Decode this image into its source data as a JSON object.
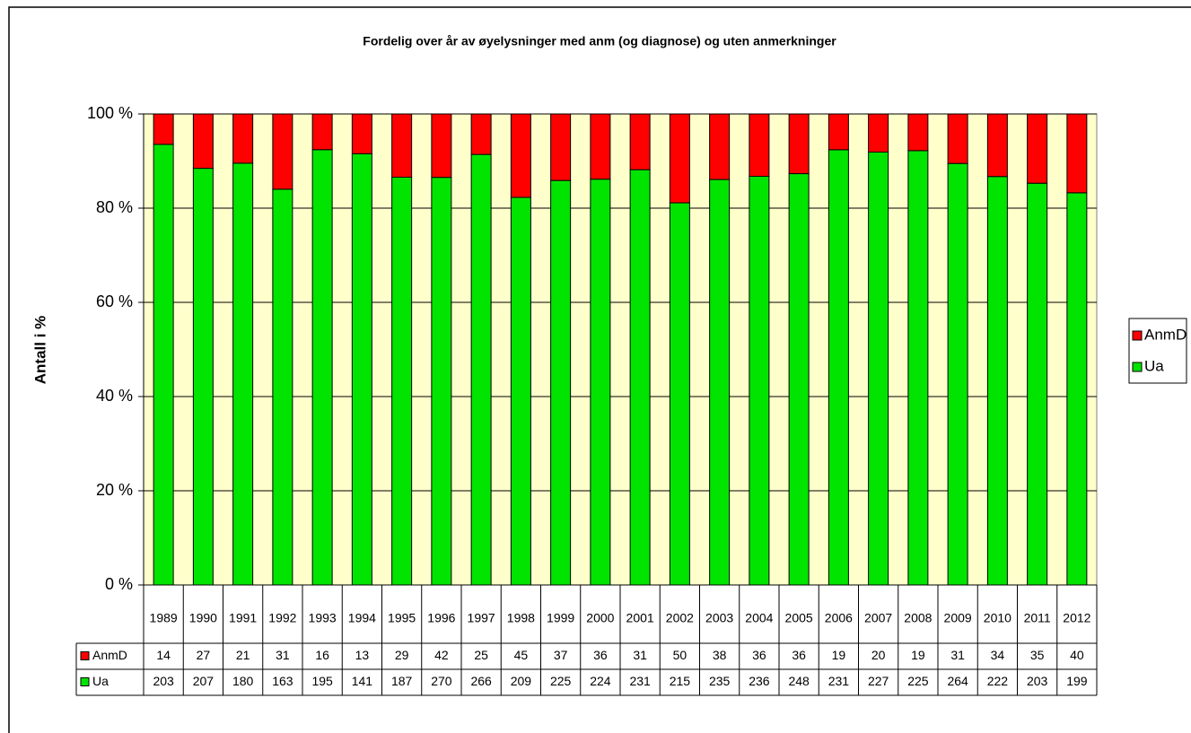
{
  "chart_data": {
    "type": "bar100",
    "title": "Fordelig over år av øyelysninger med anm (og diagnose) og uten anmerkninger",
    "y_label": "Antall i %",
    "categories": [
      "1989",
      "1990",
      "1991",
      "1992",
      "1993",
      "1994",
      "1995",
      "1996",
      "1997",
      "1998",
      "1999",
      "2000",
      "2001",
      "2002",
      "2003",
      "2004",
      "2005",
      "2006",
      "2007",
      "2008",
      "2009",
      "2010",
      "2011",
      "2012"
    ],
    "series": [
      {
        "name": "AnmD",
        "color": "#ff0000",
        "values": [
          14,
          27,
          21,
          31,
          16,
          13,
          29,
          42,
          25,
          45,
          37,
          36,
          31,
          50,
          38,
          36,
          36,
          19,
          20,
          19,
          31,
          34,
          35,
          40
        ]
      },
      {
        "name": "Ua",
        "color": "#00e400",
        "values": [
          203,
          207,
          180,
          163,
          195,
          141,
          187,
          270,
          266,
          209,
          225,
          224,
          231,
          215,
          235,
          236,
          248,
          231,
          227,
          225,
          264,
          222,
          203,
          199
        ]
      }
    ],
    "ylim": [
      0,
      100
    ],
    "yticks": [
      {
        "value": 0,
        "label": "0 %"
      },
      {
        "value": 20,
        "label": "20 %"
      },
      {
        "value": 40,
        "label": "40 %"
      },
      {
        "value": 60,
        "label": "60 %"
      },
      {
        "value": 80,
        "label": "80 %"
      },
      {
        "value": 100,
        "label": "100 %"
      }
    ],
    "grid": true,
    "legend": "right"
  }
}
